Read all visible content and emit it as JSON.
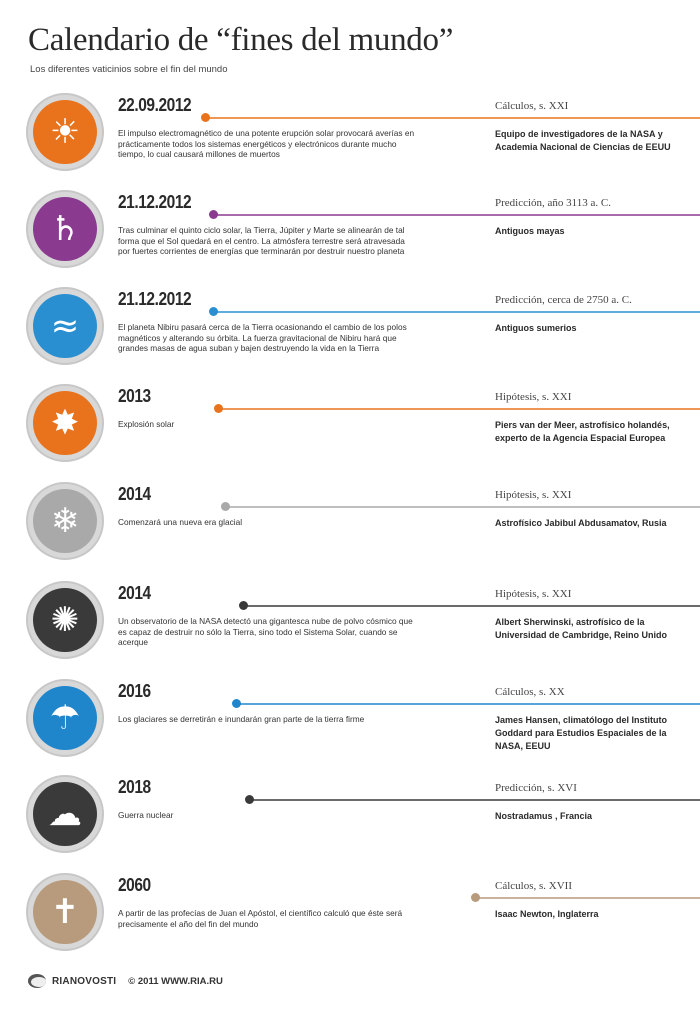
{
  "header": {
    "title": "Calendario de “fines del mundo”",
    "subtitle": "Los diferentes vaticinios sobre el fin del mundo"
  },
  "entries": [
    {
      "date": "22.09.2012",
      "category": "Cálculos, s. XXI",
      "source": "Equipo de investigadores de la NASA y Academia Nacional de Ciencias de EEUU",
      "description": "El impulso electromagnético de una potente erupción solar provocará averías en prácticamente todos los sistemas energéticos y electrónicos durante mucho tiempo, lo cual causará millones de muertos",
      "icon": "solar-flare-icon",
      "glyph": "☀",
      "color": "#e8731c"
    },
    {
      "date": "21.12.2012",
      "category": "Predicción, año 3113 a. C.",
      "source": "Antiguos mayas",
      "description": "Tras culminar el quinto ciclo solar, la Tierra, Júpiter y Marte se alinearán de tal forma que el Sol quedará en el centro. La atmósfera terrestre será atravesada por fuertes corrientes de energías que terminarán por destruir nuestro planeta",
      "icon": "planet-icon",
      "glyph": "♄",
      "color": "#8a3a8f"
    },
    {
      "date": "21.12.2012",
      "category": "Predicción, cerca de 2750 a. C.",
      "source": "Antiguos sumerios",
      "description": "El planeta Nibiru pasará cerca de la Tierra ocasionando el cambio de los polos magnéticos y alterando su órbita. La fuerza gravitacional de Nibiru hará que grandes masas de agua suban y bajen destruyendo la vida en la Tierra",
      "icon": "wave-icon",
      "glyph": "≈",
      "color": "#2a8fd0"
    },
    {
      "date": "2013",
      "category": "Hipótesis, s. XXI",
      "source": "Piers van der Meer, astrofísico holandés, experto de la Agencia Espacial Europea",
      "description": "Explosión solar",
      "icon": "explosion-icon",
      "glyph": "✸",
      "color": "#e8731c"
    },
    {
      "date": "2014",
      "category": "Hipótesis, s. XXI",
      "source": "Astrofísico Jabibul Abdusamatov, Rusia",
      "description": "Comenzará una nueva era glacial",
      "icon": "snowflake-icon",
      "glyph": "❄",
      "color": "#a9a9a9"
    },
    {
      "date": "2014",
      "category": "Hipótesis, s. XXI",
      "source": "Albert Sherwinski, astrofísico de la Universidad de Cambridge, Reino Unido",
      "description": "Un observatorio de la NASA detectó una gigantesca nube de polvo cósmico que es capaz de destruir no sólo la Tierra, sino todo el Sistema Solar, cuando se acerque",
      "icon": "cosmic-dust-icon",
      "glyph": "✺",
      "color": "#3a3a3a"
    },
    {
      "date": "2016",
      "category": "Cálculos, s. XX",
      "source": "James Hansen, climatólogo del Instituto Goddard para Estudios Espaciales de la NASA, EEUU",
      "description": "Los glaciares se derretirán e inundarán gran parte de la tierra firme",
      "icon": "melting-ice-icon",
      "glyph": "☂",
      "color": "#1f86cc"
    },
    {
      "date": "2018",
      "category": "Predicción, s. XVI",
      "source": "Nostradamus , Francia",
      "description": "Guerra nuclear",
      "icon": "nuclear-cloud-icon",
      "glyph": "☁",
      "color": "#3a3a3a"
    },
    {
      "date": "2060",
      "category": "Cálculos, s. XVII",
      "source": "Isaac Newton, Inglaterra",
      "description": "A partir de las profecías de Juan el Apóstol, el científico calculó que éste será precisamente el año del fin del mundo",
      "icon": "bible-icon",
      "glyph": "✝",
      "color": "#b89a7c"
    }
  ],
  "footer": {
    "brand": "RIANOVOSTI",
    "copyright": "© 2011 WWW.RIA.RU"
  }
}
